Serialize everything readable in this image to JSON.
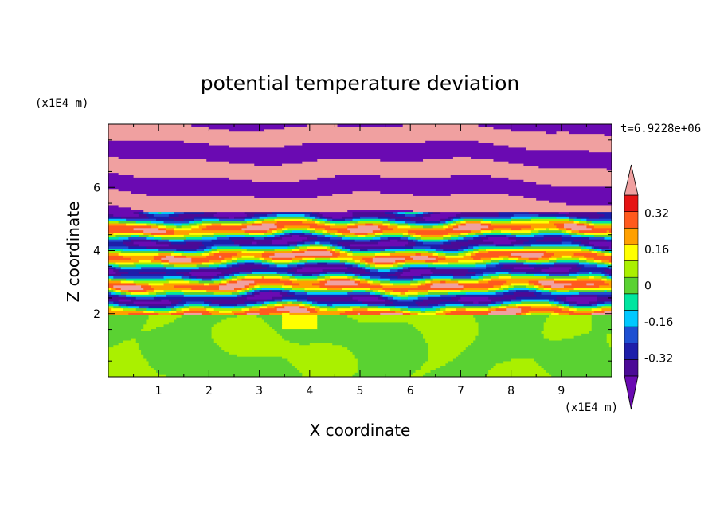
{
  "chart_data": {
    "type": "heatmap",
    "title": "potential temperature deviation",
    "xlabel": "X coordinate",
    "ylabel": "Z coordinate",
    "x_unit": "(x1E4 m)",
    "y_unit": "(x1E4 m)",
    "time_label": "t=6.9228e+06",
    "xlim": [
      0,
      10
    ],
    "ylim": [
      0,
      8
    ],
    "x_ticks": [
      1,
      2,
      3,
      4,
      5,
      6,
      7,
      8,
      9
    ],
    "y_ticks": [
      2,
      4,
      6
    ],
    "colorbar": {
      "labels": [
        "0.32",
        "0.16",
        "0",
        "-0.16",
        "-0.32"
      ],
      "label_values": [
        0.32,
        0.16,
        0,
        -0.16,
        -0.32
      ],
      "levels": [
        -0.4,
        -0.32,
        -0.24,
        -0.16,
        -0.08,
        0,
        0.08,
        0.16,
        0.24,
        0.32,
        0.4
      ],
      "colors": [
        "#4b0a96",
        "#1e1eaa",
        "#1e50d2",
        "#00c8ff",
        "#00e6a0",
        "#5ad232",
        "#aaf000",
        "#ffff00",
        "#ffa000",
        "#ff5a1e",
        "#e61414"
      ],
      "over_color": "#f0a0a0",
      "under_color": "#6a0ab2"
    },
    "regions": [
      {
        "name": "lower layer",
        "z_range": [
          0,
          2
        ],
        "dominant_values": [
          0.04,
          0.12
        ],
        "color_main": "#5ad232",
        "color_patch": "#aaf000"
      },
      {
        "name": "middle layer",
        "z_range": [
          2,
          5.3
        ],
        "description_values": "mixed -0.4 to 0.4"
      },
      {
        "name": "upper layer",
        "z_range": [
          5.3,
          8
        ],
        "dominant_values": [
          0.45,
          -0.45
        ],
        "color_main": "#f0a0a0",
        "color_alt": "#6a0ab2"
      }
    ]
  }
}
